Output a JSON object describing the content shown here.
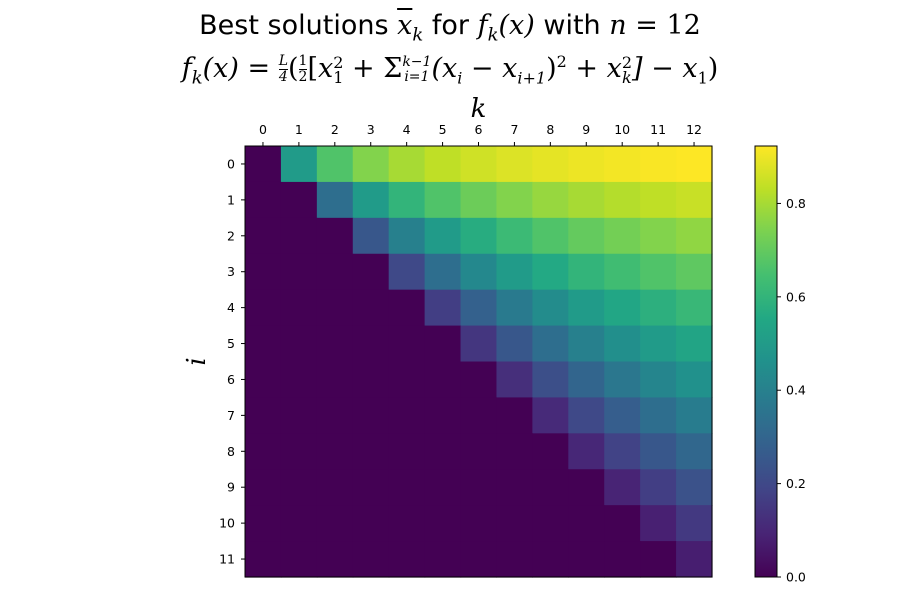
{
  "title": {
    "line1_word_best": "Best solutions",
    "line1_var": "x",
    "line1_var_sub": "k",
    "line1_word_for": "for",
    "line1_func": "f",
    "line1_func_sub": "k",
    "line1_func_arg": "(x)",
    "line1_word_with": "with",
    "line1_n": "n",
    "line1_eq": "= 12",
    "line2_lhs": "f",
    "line2_lhs_sub": "k",
    "line2_lhs_arg": "(x) =",
    "line2_frac_L": "L",
    "line2_frac_4": "4",
    "line2_open": "(",
    "line2_frac_1": "1",
    "line2_frac_2": "2",
    "line2_bracket_open": "[",
    "line2_x1": "x",
    "line2_x1_sub": "1",
    "line2_x1_sup": "2",
    "line2_plus1": " + Σ",
    "line2_sum_sub": "i=1",
    "line2_sum_sup": "k−1",
    "line2_sum_term": "(x",
    "line2_sum_i": "i",
    "line2_minus": " − x",
    "line2_sum_i1": "i+1",
    "line2_sq_close": ")",
    "line2_sq": "2",
    "line2_plus2": " + x",
    "line2_xk_sub": "k",
    "line2_xk_sup": "2",
    "line2_bracket_close": "] − x",
    "line2_last_sub": "1",
    "line2_close": ")"
  },
  "colors": {
    "colormap": "viridis",
    "zero_cell": "#440154"
  },
  "chart_data": {
    "type": "heatmap",
    "xlabel": "k",
    "ylabel": "i",
    "x_ticks": [
      "0",
      "1",
      "2",
      "3",
      "4",
      "5",
      "6",
      "7",
      "8",
      "9",
      "10",
      "11",
      "12"
    ],
    "y_ticks": [
      "0",
      "1",
      "2",
      "3",
      "4",
      "5",
      "6",
      "7",
      "8",
      "9",
      "10",
      "11"
    ],
    "x_axis_position": "top",
    "grid": false,
    "colorbar": {
      "position": "right",
      "vmin": 0,
      "vmax": 0.923,
      "ticks": [
        0.0,
        0.2,
        0.4,
        0.6,
        0.8
      ],
      "tick_labels": [
        "0.0",
        "0.2",
        "0.4",
        "0.6",
        "0.8"
      ]
    },
    "values": [
      [
        0,
        0.5,
        0.667,
        0.75,
        0.8,
        0.833,
        0.857,
        0.875,
        0.889,
        0.9,
        0.909,
        0.917,
        0.923
      ],
      [
        0,
        0,
        0.333,
        0.5,
        0.6,
        0.667,
        0.714,
        0.75,
        0.778,
        0.8,
        0.818,
        0.833,
        0.846
      ],
      [
        0,
        0,
        0,
        0.25,
        0.4,
        0.5,
        0.571,
        0.625,
        0.667,
        0.7,
        0.727,
        0.75,
        0.769
      ],
      [
        0,
        0,
        0,
        0,
        0.2,
        0.333,
        0.429,
        0.5,
        0.556,
        0.6,
        0.636,
        0.667,
        0.692
      ],
      [
        0,
        0,
        0,
        0,
        0,
        0.167,
        0.286,
        0.375,
        0.444,
        0.5,
        0.545,
        0.583,
        0.615
      ],
      [
        0,
        0,
        0,
        0,
        0,
        0,
        0.143,
        0.25,
        0.333,
        0.4,
        0.455,
        0.5,
        0.538
      ],
      [
        0,
        0,
        0,
        0,
        0,
        0,
        0,
        0.125,
        0.222,
        0.3,
        0.364,
        0.417,
        0.462
      ],
      [
        0,
        0,
        0,
        0,
        0,
        0,
        0,
        0,
        0.111,
        0.2,
        0.273,
        0.333,
        0.385
      ],
      [
        0,
        0,
        0,
        0,
        0,
        0,
        0,
        0,
        0,
        0.1,
        0.182,
        0.25,
        0.308
      ],
      [
        0,
        0,
        0,
        0,
        0,
        0,
        0,
        0,
        0,
        0,
        0.091,
        0.167,
        0.231
      ],
      [
        0,
        0,
        0,
        0,
        0,
        0,
        0,
        0,
        0,
        0,
        0,
        0.083,
        0.154
      ],
      [
        0,
        0,
        0,
        0,
        0,
        0,
        0,
        0,
        0,
        0,
        0,
        0,
        0.077
      ]
    ]
  }
}
